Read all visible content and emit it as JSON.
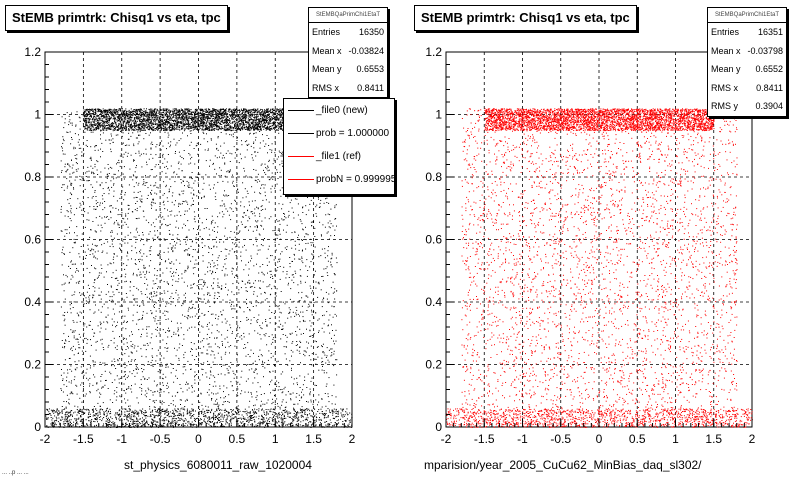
{
  "colors": {
    "left_points": "#000000",
    "right_points": "#ff0000",
    "ref_line": "#ff0000",
    "new_line": "#000000"
  },
  "left": {
    "title": "StEMB primtrk: Chisq1 vs eta, tpc",
    "stats": {
      "name": "StEMBQaPrimChi1EtaT",
      "rows": [
        {
          "key": "Entries",
          "value": "16350"
        },
        {
          "key": "Mean x",
          "value": "-0.03824"
        },
        {
          "key": "Mean y",
          "value": "0.6553"
        },
        {
          "key": "RMS x",
          "value": "0.8411"
        }
      ]
    },
    "legend": [
      {
        "label": "_file0 (new)",
        "color": "#000000"
      },
      {
        "label": "prob = 1.000000",
        "color": "#000000"
      },
      {
        "label": "_file1 (ref)",
        "color": "#ff0000"
      },
      {
        "label": "probN = 0.999995",
        "color": "#ff0000"
      }
    ],
    "file_label": "st_physics_6080011_raw_1020004",
    "tiny_label": "... ..p ... ..."
  },
  "right": {
    "title": "StEMB primtrk: Chisq1 vs eta, tpc",
    "stats": {
      "name": "StEMBQaPrimChi1EtaT",
      "rows": [
        {
          "key": "Entries",
          "value": "16351"
        },
        {
          "key": "Mean x",
          "value": "-0.03798"
        },
        {
          "key": "Mean y",
          "value": "0.6552"
        },
        {
          "key": "RMS x",
          "value": "0.8411"
        },
        {
          "key": "RMS y",
          "value": "0.3904"
        }
      ]
    },
    "file_label": "mparision/year_2005_CuCu62_MinBias_daq_sl302/"
  },
  "chart_data": [
    {
      "type": "scatter",
      "title": "StEMB primtrk: Chisq1 vs eta, tpc",
      "xlim": [
        -2,
        2
      ],
      "ylim": [
        0,
        1.2
      ],
      "xticks": [
        "-2",
        "-1.5",
        "-1",
        "-0.5",
        "0",
        "0.5",
        "1",
        "1.5",
        "2"
      ],
      "yticks": [
        "0",
        "0.2",
        "0.4",
        "0.6",
        "0.8",
        "1",
        "1.2"
      ],
      "grid": true,
      "color": "#000000",
      "series": [
        {
          "name": "_file0 (new)",
          "density_bands": [
            {
              "x": [
                -1.5,
                1.5
              ],
              "y": [
                0.95,
                1.02
              ],
              "weight": 0.42
            },
            {
              "x": [
                -2.0,
                2.0
              ],
              "y": [
                0.0,
                0.06
              ],
              "weight": 0.14
            },
            {
              "x": [
                -1.8,
                1.8
              ],
              "y": [
                0.0,
                1.02
              ],
              "weight": 0.44
            }
          ]
        }
      ],
      "legend_position": "top-right"
    },
    {
      "type": "scatter",
      "title": "StEMB primtrk: Chisq1 vs eta, tpc",
      "xlim": [
        -2,
        2
      ],
      "ylim": [
        0,
        1.2
      ],
      "xticks": [
        "-2",
        "-1.5",
        "-1",
        "-0.5",
        "0",
        "0.5",
        "1",
        "1.5",
        "2"
      ],
      "yticks": [
        "0",
        "0.2",
        "0.4",
        "0.6",
        "0.8",
        "1",
        "1.2"
      ],
      "grid": true,
      "color": "#ff0000",
      "series": [
        {
          "name": "_file1 (ref)",
          "density_bands": [
            {
              "x": [
                -1.5,
                1.5
              ],
              "y": [
                0.95,
                1.02
              ],
              "weight": 0.42
            },
            {
              "x": [
                -2.0,
                2.0
              ],
              "y": [
                0.0,
                0.06
              ],
              "weight": 0.14
            },
            {
              "x": [
                -1.8,
                1.8
              ],
              "y": [
                0.0,
                1.02
              ],
              "weight": 0.44
            }
          ]
        }
      ]
    }
  ]
}
